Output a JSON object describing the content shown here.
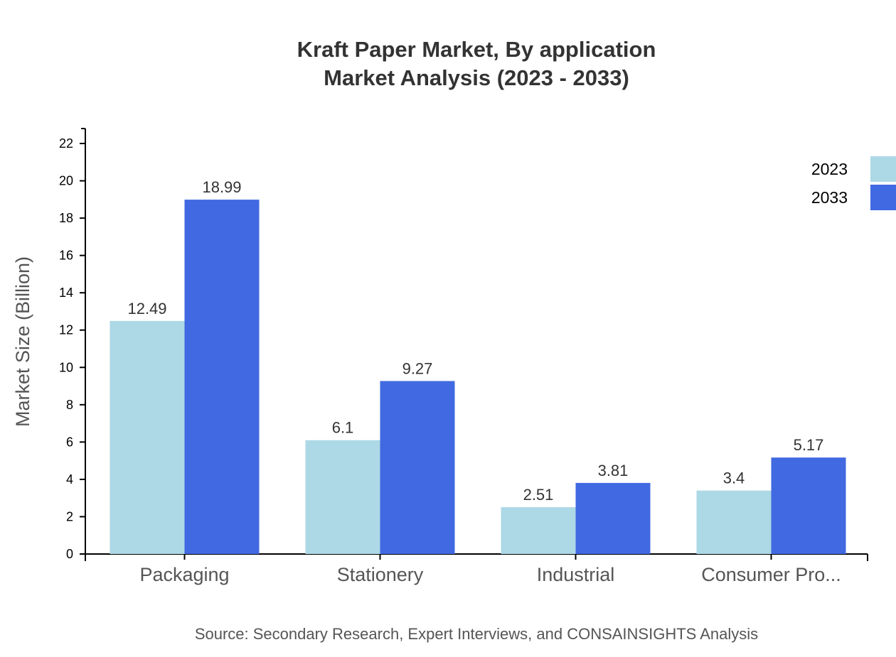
{
  "chart_data": {
    "type": "bar",
    "title": [
      "Kraft Paper Market, By application",
      "Market Analysis (2023 - 2033)"
    ],
    "ylabel": "Market Size (Billion)",
    "xlabel": "",
    "categories": [
      "Packaging",
      "Stationery",
      "Industrial",
      "Consumer Pro..."
    ],
    "series": [
      {
        "name": "2023",
        "color": "#add8e6",
        "values": [
          12.49,
          6.1,
          2.51,
          3.4
        ]
      },
      {
        "name": "2033",
        "color": "#4169e1",
        "values": [
          18.99,
          9.27,
          3.81,
          5.17
        ]
      }
    ],
    "value_labels": [
      [
        "12.49",
        "6.1",
        "2.51",
        "3.4"
      ],
      [
        "18.99",
        "9.27",
        "3.81",
        "5.17"
      ]
    ],
    "ylim": [
      0,
      22.8
    ],
    "yticks": [
      0,
      2,
      4,
      6,
      8,
      10,
      12,
      14,
      16,
      18,
      20,
      22
    ],
    "grid": false,
    "legend_position": "top-right",
    "source": "Source: Secondary Research, Expert Interviews, and CONSAINSIGHTS Analysis"
  }
}
